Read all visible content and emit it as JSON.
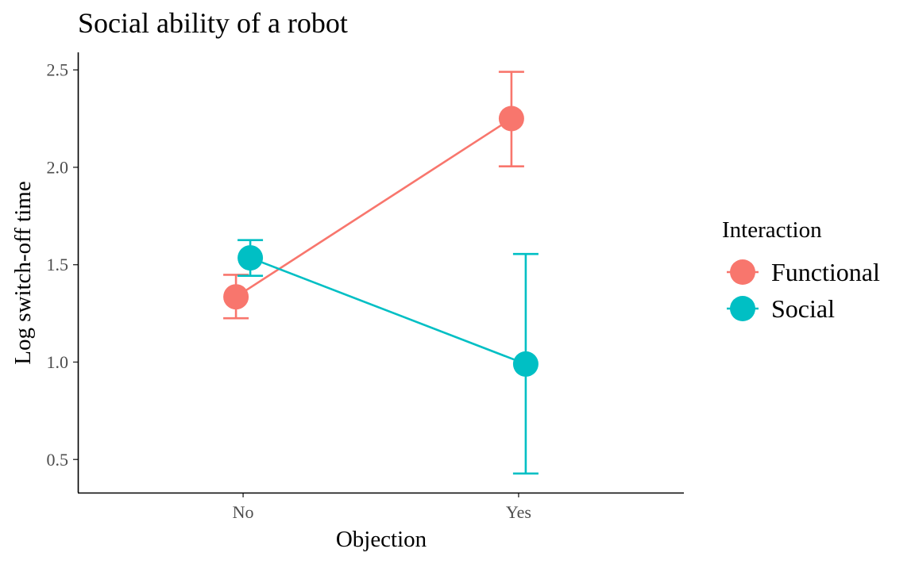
{
  "chart_data": {
    "type": "line",
    "title": "Social ability of a robot",
    "xlabel": "Objection",
    "ylabel": "Log switch-off time",
    "categories": [
      "No",
      "Yes"
    ],
    "ylim": [
      0.33,
      2.59
    ],
    "yticks": [
      "0.5",
      "1.0",
      "1.5",
      "2.0",
      "2.5"
    ],
    "grid": false,
    "legend": {
      "title": "Interaction",
      "position": "right"
    },
    "series": [
      {
        "name": "Functional",
        "color": "#F8766D",
        "values": [
          1.335,
          2.25
        ],
        "error_low": [
          1.225,
          2.005
        ],
        "error_high": [
          1.448,
          2.49
        ]
      },
      {
        "name": "Social",
        "color": "#00BFC4",
        "values": [
          1.535,
          0.99
        ],
        "error_low": [
          1.443,
          0.428
        ],
        "error_high": [
          1.626,
          1.555
        ]
      }
    ]
  }
}
